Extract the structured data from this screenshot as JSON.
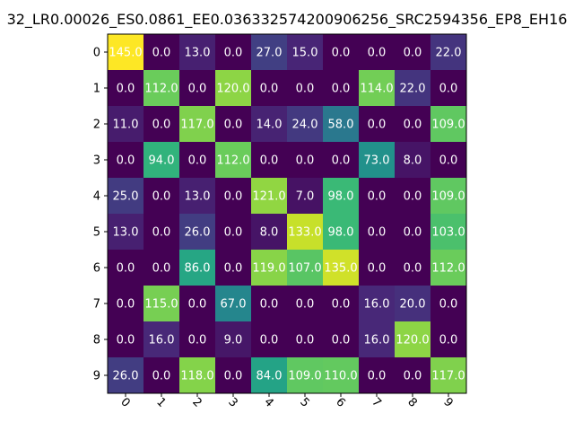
{
  "chart_data": {
    "type": "heatmap",
    "title": "32_LR0.00026_ES0.0861_EE0.036332574200906256_SRC2594356_EP8_EH16",
    "xlabel": "",
    "ylabel": "",
    "x_ticks": [
      "0",
      "1",
      "2",
      "3",
      "4",
      "5",
      "6",
      "7",
      "8",
      "9"
    ],
    "y_ticks": [
      "0",
      "1",
      "2",
      "3",
      "4",
      "5",
      "6",
      "7",
      "8",
      "9"
    ],
    "colormap": "viridis",
    "value_range": [
      0,
      145
    ],
    "values": [
      [
        145.0,
        0.0,
        13.0,
        0.0,
        27.0,
        15.0,
        0.0,
        0.0,
        0.0,
        22.0
      ],
      [
        0.0,
        112.0,
        0.0,
        120.0,
        0.0,
        0.0,
        0.0,
        114.0,
        22.0,
        0.0
      ],
      [
        11.0,
        0.0,
        117.0,
        0.0,
        14.0,
        24.0,
        58.0,
        0.0,
        0.0,
        109.0
      ],
      [
        0.0,
        94.0,
        0.0,
        112.0,
        0.0,
        0.0,
        0.0,
        73.0,
        8.0,
        0.0
      ],
      [
        25.0,
        0.0,
        13.0,
        0.0,
        121.0,
        7.0,
        98.0,
        0.0,
        0.0,
        109.0
      ],
      [
        13.0,
        0.0,
        26.0,
        0.0,
        8.0,
        133.0,
        98.0,
        0.0,
        0.0,
        103.0
      ],
      [
        0.0,
        0.0,
        86.0,
        0.0,
        119.0,
        107.0,
        135.0,
        0.0,
        0.0,
        112.0
      ],
      [
        0.0,
        115.0,
        0.0,
        67.0,
        0.0,
        0.0,
        0.0,
        16.0,
        20.0,
        0.0
      ],
      [
        0.0,
        16.0,
        0.0,
        9.0,
        0.0,
        0.0,
        0.0,
        16.0,
        120.0,
        0.0
      ],
      [
        26.0,
        0.0,
        118.0,
        0.0,
        84.0,
        109.0,
        110.0,
        0.0,
        0.0,
        117.0
      ]
    ],
    "cell_labels": [
      [
        "145.0",
        "0.0",
        "13.0",
        "0.0",
        "27.0",
        "15.0",
        "0.0",
        "0.0",
        "0.0",
        "22.0"
      ],
      [
        "0.0",
        "112.0",
        "0.0",
        "120.0",
        "0.0",
        "0.0",
        "0.0",
        "114.0",
        "22.0",
        "0.0"
      ],
      [
        "11.0",
        "0.0",
        "117.0",
        "0.0",
        "14.0",
        "24.0",
        "58.0",
        "0.0",
        "0.0",
        "109.0"
      ],
      [
        "0.0",
        "94.0",
        "0.0",
        "112.0",
        "0.0",
        "0.0",
        "0.0",
        "73.0",
        "8.0",
        "0.0"
      ],
      [
        "25.0",
        "0.0",
        "13.0",
        "0.0",
        "121.0",
        "7.0",
        "98.0",
        "0.0",
        "0.0",
        "109.0"
      ],
      [
        "13.0",
        "0.0",
        "26.0",
        "0.0",
        "8.0",
        "133.0",
        "98.0",
        "0.0",
        "0.0",
        "103.0"
      ],
      [
        "0.0",
        "0.0",
        "86.0",
        "0.0",
        "119.0",
        "107.0",
        "135.0",
        "0.0",
        "0.0",
        "112.0"
      ],
      [
        "0.0",
        "115.0",
        "0.0",
        "67.0",
        "0.0",
        "0.0",
        "0.0",
        "16.0",
        "20.0",
        "0.0"
      ],
      [
        "0.0",
        "16.0",
        "0.0",
        "9.0",
        "0.0",
        "0.0",
        "0.0",
        "16.0",
        "120.0",
        "0.0"
      ],
      [
        "26.0",
        "0.0",
        "118.0",
        "0.0",
        "84.0",
        "109.0",
        "110.0",
        "0.0",
        "0.0",
        "117.0"
      ]
    ],
    "grid": false,
    "legend": "none",
    "x_tick_rotation_deg": 45,
    "colors": {
      "text": "#ffffff",
      "axis": "#000000",
      "low": "#440154",
      "high": "#fde725"
    }
  }
}
